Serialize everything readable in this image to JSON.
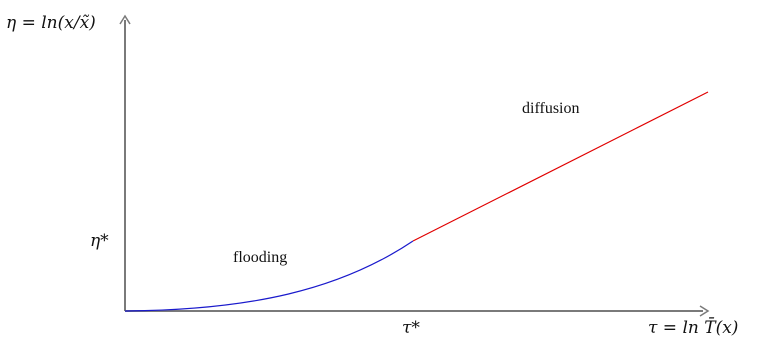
{
  "diagram": {
    "y_axis_label": "η = ln(x/x̃)",
    "x_axis_label": "τ = ln T̄(x)",
    "x_mark": "τ*",
    "y_mark": "η*",
    "segments": [
      {
        "label": "flooding",
        "color": "#1a1acc"
      },
      {
        "label": "diffusion",
        "color": "#e00000"
      }
    ],
    "axis_color": "#7a7a7a"
  }
}
